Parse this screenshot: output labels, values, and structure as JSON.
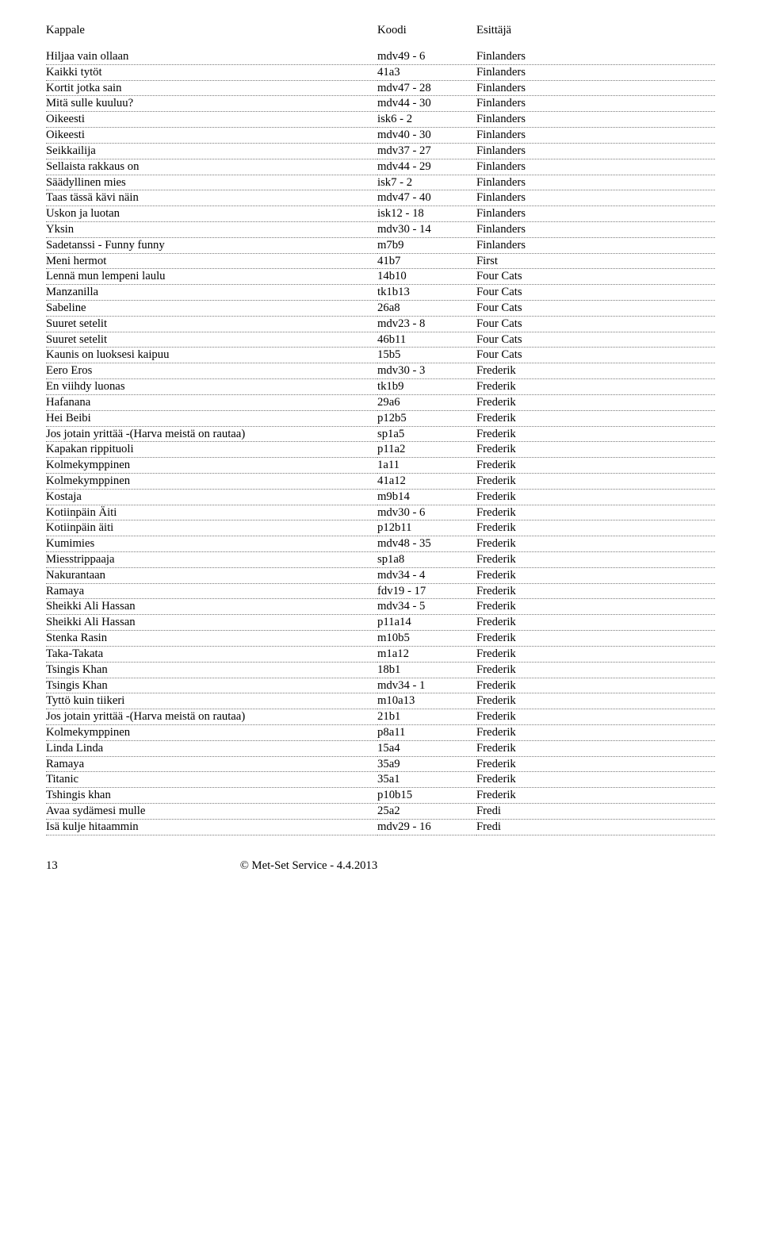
{
  "header": {
    "kappale": "Kappale",
    "koodi": "Koodi",
    "esittaja": "Esittäjä"
  },
  "rows": [
    {
      "k": "Hiljaa vain ollaan",
      "c": "mdv49 - 6",
      "e": "Finlanders"
    },
    {
      "k": "Kaikki tytöt",
      "c": "41a3",
      "e": "Finlanders"
    },
    {
      "k": "Kortit jotka sain",
      "c": "mdv47 - 28",
      "e": "Finlanders"
    },
    {
      "k": "Mitä sulle kuuluu?",
      "c": "mdv44 - 30",
      "e": "Finlanders"
    },
    {
      "k": "Oikeesti",
      "c": "isk6  - 2",
      "e": "Finlanders"
    },
    {
      "k": "Oikeesti",
      "c": "mdv40 - 30",
      "e": "Finlanders"
    },
    {
      "k": "Seikkailija",
      "c": "mdv37 - 27",
      "e": "Finlanders"
    },
    {
      "k": "Sellaista rakkaus on",
      "c": "mdv44 - 29",
      "e": "Finlanders"
    },
    {
      "k": "Säädyllinen mies",
      "c": "isk7 - 2",
      "e": "Finlanders"
    },
    {
      "k": "Taas tässä kävi näin",
      "c": "mdv47 - 40",
      "e": "Finlanders"
    },
    {
      "k": "Uskon ja luotan",
      "c": "isk12 - 18",
      "e": "Finlanders"
    },
    {
      "k": "Yksin",
      "c": "mdv30 - 14",
      "e": "Finlanders"
    },
    {
      "k": "Sadetanssi - Funny funny",
      "c": "m7b9",
      "e": "Finlanders"
    },
    {
      "k": "Meni hermot",
      "c": "41b7",
      "e": "First"
    },
    {
      "k": "Lennä mun lempeni laulu",
      "c": "14b10",
      "e": "Four Cats"
    },
    {
      "k": "Manzanilla",
      "c": "tk1b13",
      "e": "Four Cats"
    },
    {
      "k": "Sabeline",
      "c": "26a8",
      "e": "Four Cats"
    },
    {
      "k": "Suuret setelit",
      "c": "mdv23 - 8",
      "e": "Four Cats"
    },
    {
      "k": "Suuret setelit",
      "c": "46b11",
      "e": "Four Cats"
    },
    {
      "k": "Kaunis on luoksesi kaipuu",
      "c": "15b5",
      "e": "Four Cats"
    },
    {
      "k": "Eero Eros",
      "c": "mdv30 - 3",
      "e": "Frederik"
    },
    {
      "k": "En viihdy luonas",
      "c": "tk1b9",
      "e": "Frederik"
    },
    {
      "k": "Hafanana",
      "c": "29a6",
      "e": "Frederik"
    },
    {
      "k": "Hei Beibi",
      "c": "p12b5",
      "e": "Frederik"
    },
    {
      "k": "Jos jotain yrittää -(Harva meistä on rautaa)",
      "c": "sp1a5",
      "e": "Frederik"
    },
    {
      "k": "Kapakan rippituoli",
      "c": "p11a2",
      "e": "Frederik"
    },
    {
      "k": "Kolmekymppinen",
      "c": "1a11",
      "e": "Frederik"
    },
    {
      "k": "Kolmekymppinen",
      "c": "41a12",
      "e": "Frederik"
    },
    {
      "k": "Kostaja",
      "c": "m9b14",
      "e": "Frederik"
    },
    {
      "k": "Kotiinpäin Äiti",
      "c": "mdv30 - 6",
      "e": "Frederik"
    },
    {
      "k": "Kotiinpäin äiti",
      "c": "p12b11",
      "e": "Frederik"
    },
    {
      "k": "Kumimies",
      "c": "mdv48 - 35",
      "e": "Frederik"
    },
    {
      "k": "Miesstrippaaja",
      "c": "sp1a8",
      "e": "Frederik"
    },
    {
      "k": "Nakurantaan",
      "c": "mdv34 - 4",
      "e": "Frederik"
    },
    {
      "k": "Ramaya",
      "c": "fdv19 - 17",
      "e": "Frederik"
    },
    {
      "k": "Sheikki Ali Hassan",
      "c": "mdv34 - 5",
      "e": "Frederik"
    },
    {
      "k": "Sheikki Ali Hassan",
      "c": "p11a14",
      "e": "Frederik"
    },
    {
      "k": "Stenka Rasin",
      "c": "m10b5",
      "e": "Frederik"
    },
    {
      "k": "Taka-Takata",
      "c": "m1a12",
      "e": "Frederik"
    },
    {
      "k": "Tsingis Khan",
      "c": "18b1",
      "e": "Frederik"
    },
    {
      "k": "Tsingis Khan",
      "c": "mdv34 - 1",
      "e": "Frederik"
    },
    {
      "k": "Tyttö kuin tiikeri",
      "c": "m10a13",
      "e": "Frederik"
    },
    {
      "k": "Jos jotain yrittää -(Harva meistä on rautaa)",
      "c": "21b1",
      "e": "Frederik"
    },
    {
      "k": "Kolmekymppinen",
      "c": "p8a11",
      "e": "Frederik"
    },
    {
      "k": "Linda Linda",
      "c": "15a4",
      "e": "Frederik"
    },
    {
      "k": "Ramaya",
      "c": "35a9",
      "e": "Frederik"
    },
    {
      "k": "Titanic",
      "c": "35a1",
      "e": "Frederik"
    },
    {
      "k": "Tshingis khan",
      "c": "p10b15",
      "e": "Frederik"
    },
    {
      "k": "Avaa sydämesi mulle",
      "c": "25a2",
      "e": "Fredi"
    },
    {
      "k": "Isä kulje hitaammin",
      "c": "mdv29 - 16",
      "e": "Fredi"
    }
  ],
  "footer": {
    "page": "13",
    "copyright": "© Met-Set Service - 4.4.2013"
  }
}
